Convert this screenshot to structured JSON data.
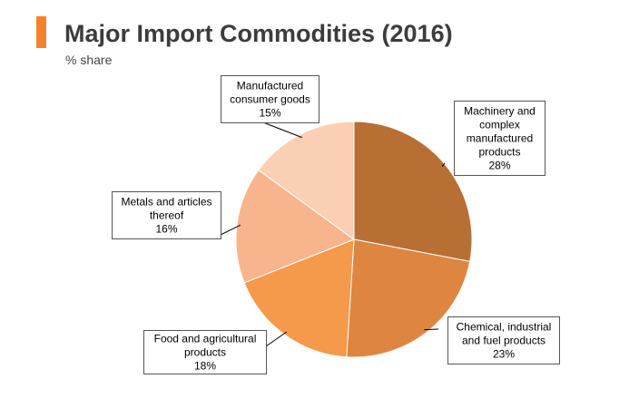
{
  "header": {
    "title": "Major Import Commodities (2016)",
    "subtitle": "% share",
    "accent_color": "#f5822a"
  },
  "chart_data": {
    "type": "pie",
    "title": "Major Import Commodities (2016)",
    "subtitle": "% share",
    "unit": "%",
    "slices": [
      {
        "label_lines": [
          "Machinery and",
          "complex",
          "manufactured",
          "products"
        ],
        "label": "Machinery and complex manufactured products",
        "value": 28,
        "value_label": "28%",
        "color": "#b86f33"
      },
      {
        "label_lines": [
          "Chemical, industrial",
          "and fuel products"
        ],
        "label": "Chemical, industrial and fuel products",
        "value": 23,
        "value_label": "23%",
        "color": "#de8640"
      },
      {
        "label_lines": [
          "Food and agricultural",
          "products"
        ],
        "label": "Food and agricultural products",
        "value": 18,
        "value_label": "18%",
        "color": "#f5994a"
      },
      {
        "label_lines": [
          "Metals and articles",
          "thereof"
        ],
        "label": "Metals and articles thereof",
        "value": 16,
        "value_label": "16%",
        "color": "#f8b48d"
      },
      {
        "label_lines": [
          "Manufactured",
          "consumer goods"
        ],
        "label": "Manufactured consumer goods",
        "value": 15,
        "value_label": "15%",
        "color": "#fbcfb4"
      }
    ]
  }
}
